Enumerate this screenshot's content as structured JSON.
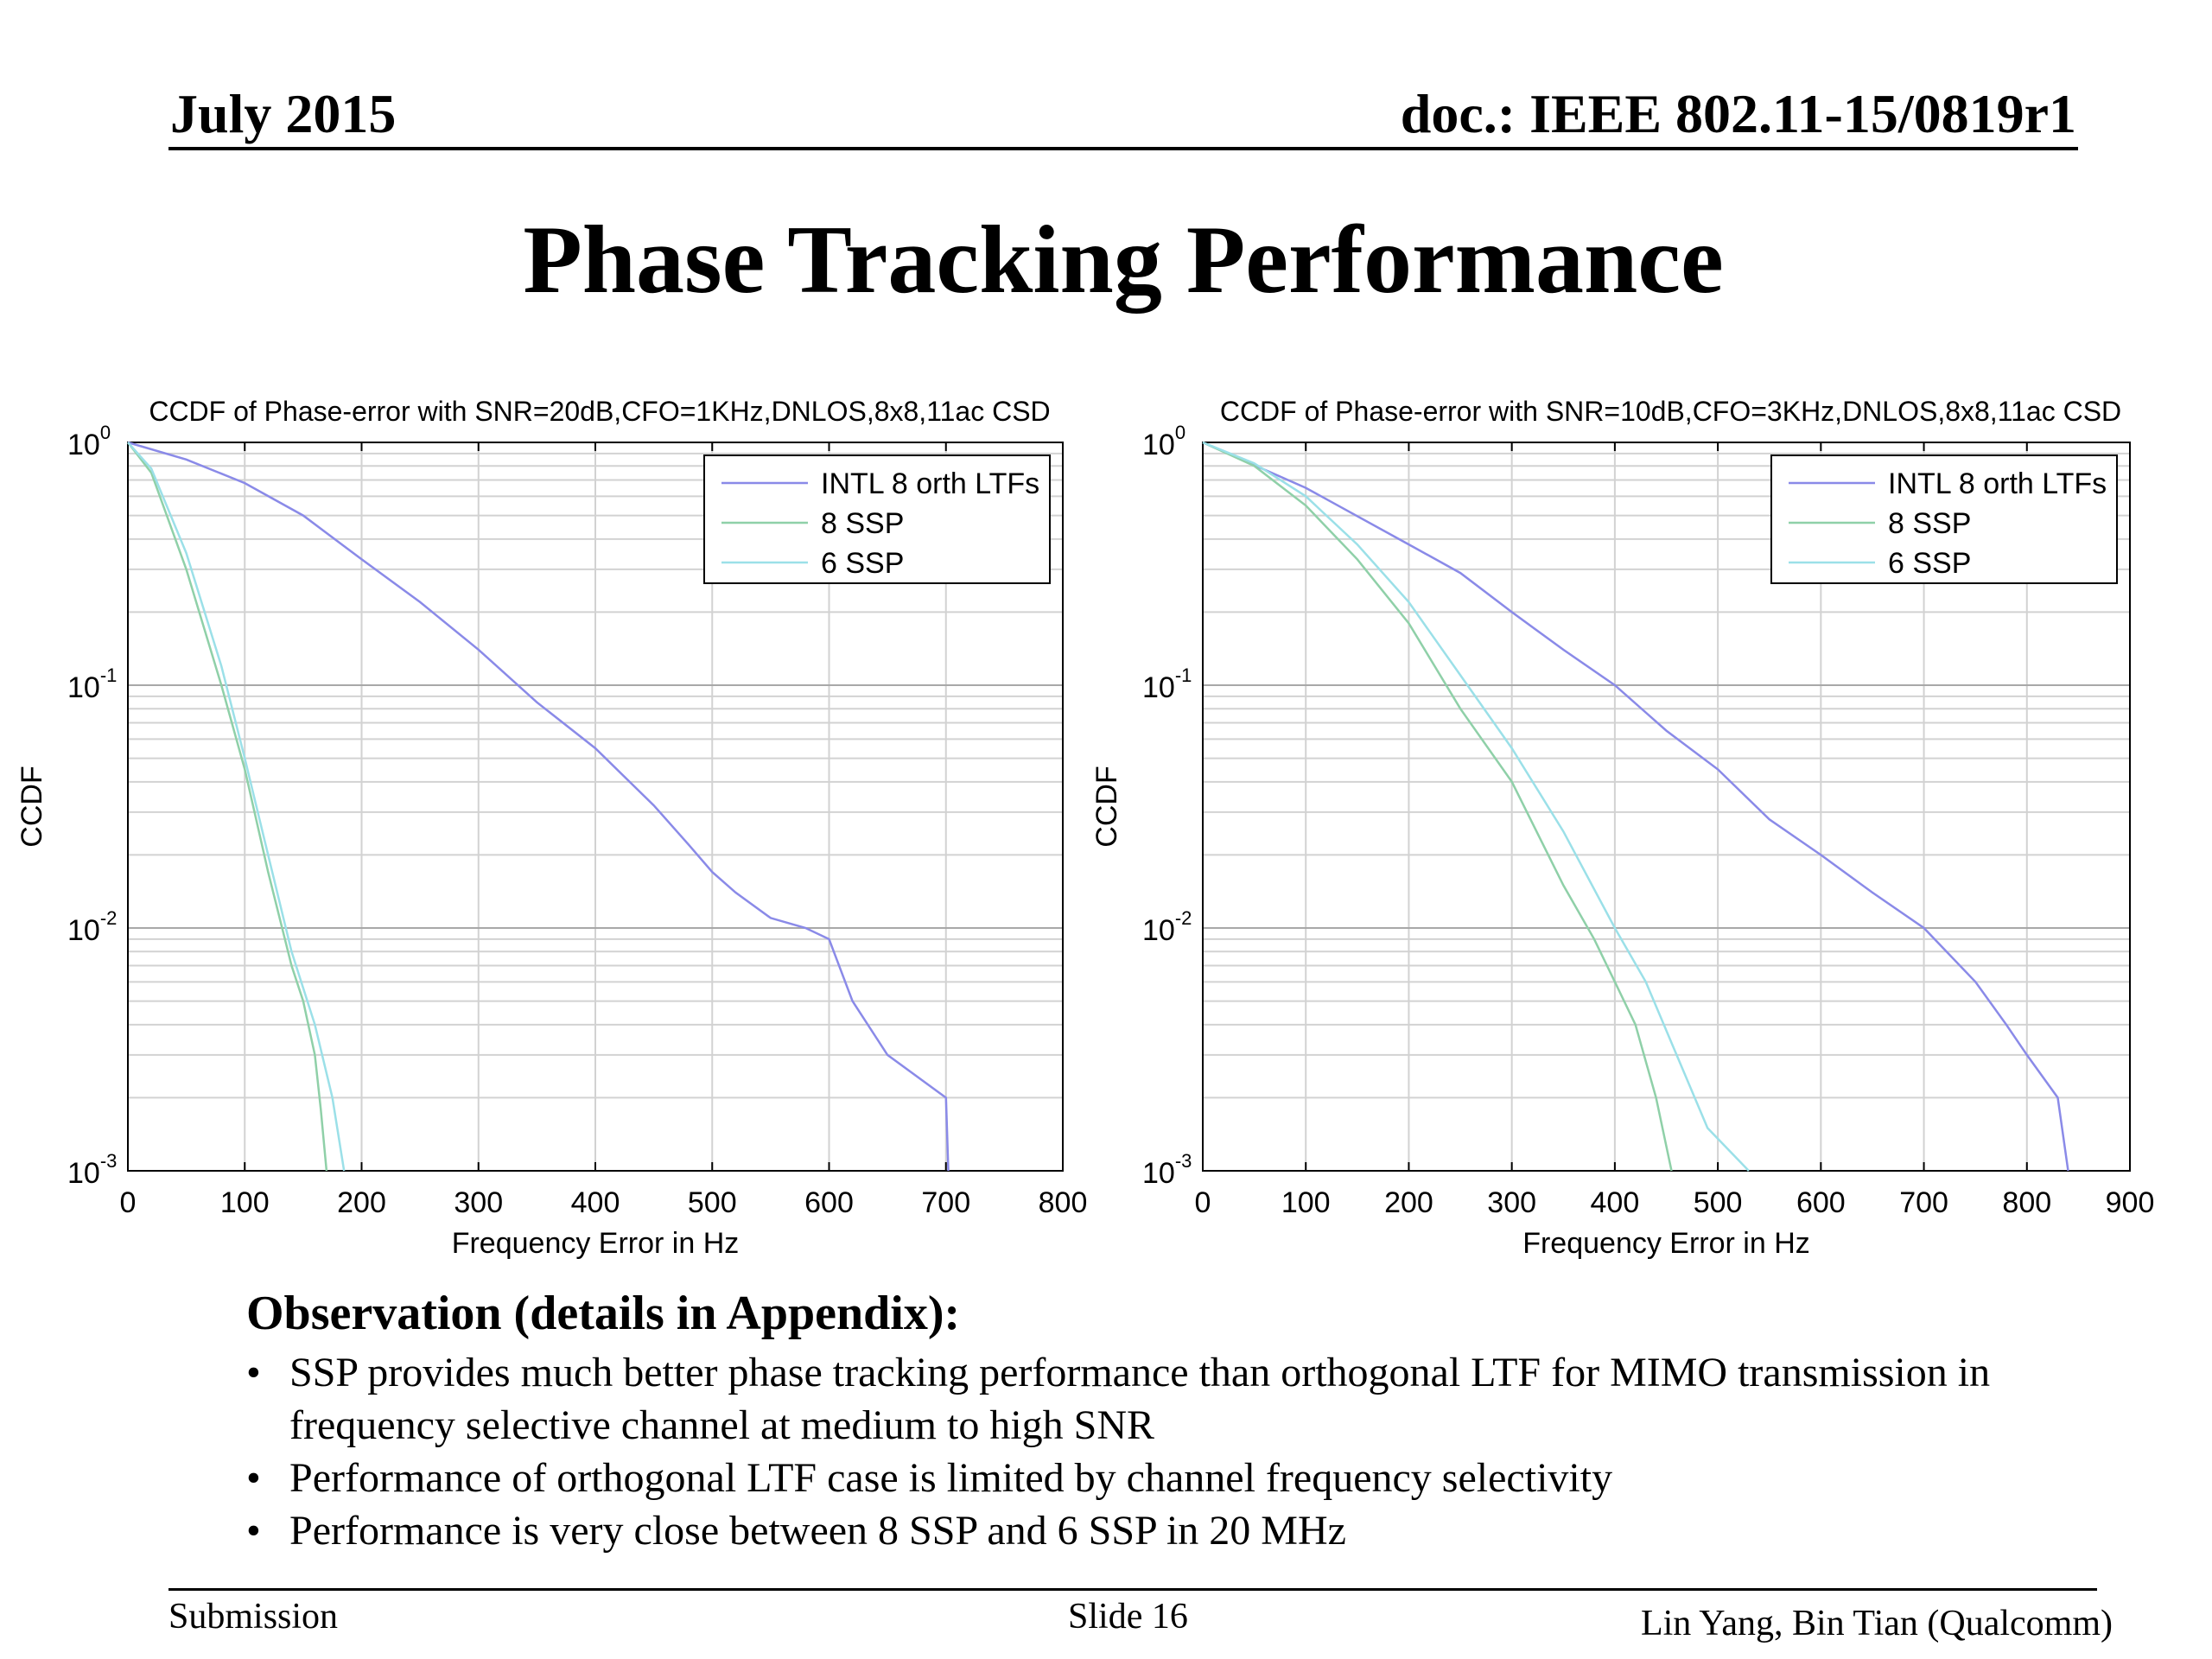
{
  "header": {
    "date": "July 2015",
    "doc": "doc.: IEEE 802.11-15/0819r1"
  },
  "title": "Phase Tracking Performance",
  "observation": {
    "heading": "Observation (details in Appendix):",
    "bullets": [
      "SSP provides much better phase tracking performance than orthogonal LTF for MIMO transmission in frequency selective channel at medium to high SNR",
      "Performance of orthogonal LTF case is limited by channel frequency selectivity",
      "Performance is very close between 8 SSP and 6 SSP in 20 MHz"
    ]
  },
  "footer": {
    "left": "Submission",
    "center": "Slide 16",
    "right": "Lin Yang, Bin Tian (Qualcomm)"
  },
  "colors": {
    "intl": "#8a8ae8",
    "ssp8": "#8fd0a8",
    "ssp6": "#9be0e8"
  },
  "chart_data": [
    {
      "type": "line",
      "title": "CCDF of Phase-error with SNR=20dB,CFO=1KHz,DNLOS,8x8,11ac CSD",
      "xlabel": "Frequency Error in Hz",
      "ylabel": "CCDF",
      "xlim": [
        0,
        800
      ],
      "ylim": [
        0.001,
        1
      ],
      "yscale": "log",
      "grid": true,
      "legend_position": "top-right",
      "xticks": [
        0,
        100,
        200,
        300,
        400,
        500,
        600,
        700,
        800
      ],
      "series": [
        {
          "name": "INTL 8 orth LTFs",
          "color": "#8a8ae8",
          "x": [
            0,
            50,
            100,
            150,
            200,
            250,
            300,
            350,
            400,
            450,
            480,
            500,
            520,
            550,
            580,
            600,
            620,
            650,
            700,
            702
          ],
          "y": [
            1.0,
            0.85,
            0.68,
            0.5,
            0.33,
            0.22,
            0.14,
            0.085,
            0.055,
            0.032,
            0.022,
            0.017,
            0.014,
            0.011,
            0.01,
            0.009,
            0.005,
            0.003,
            0.002,
            0.001
          ]
        },
        {
          "name": "8 SSP",
          "color": "#8fd0a8",
          "x": [
            0,
            20,
            50,
            80,
            100,
            120,
            140,
            150,
            160,
            165,
            170
          ],
          "y": [
            1.0,
            0.75,
            0.3,
            0.1,
            0.045,
            0.017,
            0.007,
            0.005,
            0.003,
            0.0018,
            0.001
          ]
        },
        {
          "name": "6 SSP",
          "color": "#9be0e8",
          "x": [
            0,
            20,
            50,
            80,
            100,
            120,
            140,
            160,
            175,
            185
          ],
          "y": [
            1.0,
            0.78,
            0.35,
            0.12,
            0.05,
            0.02,
            0.008,
            0.004,
            0.002,
            0.001
          ]
        }
      ]
    },
    {
      "type": "line",
      "title": "CCDF of Phase-error with SNR=10dB,CFO=3KHz,DNLOS,8x8,11ac CSD",
      "xlabel": "Frequency Error in Hz",
      "ylabel": "CCDF",
      "xlim": [
        0,
        900
      ],
      "ylim": [
        0.001,
        1
      ],
      "yscale": "log",
      "grid": true,
      "legend_position": "top-right",
      "xticks": [
        0,
        100,
        200,
        300,
        400,
        500,
        600,
        700,
        800,
        900
      ],
      "series": [
        {
          "name": "INTL 8 orth LTFs",
          "color": "#8a8ae8",
          "x": [
            0,
            100,
            200,
            250,
            300,
            350,
            400,
            450,
            500,
            550,
            600,
            650,
            700,
            750,
            780,
            800,
            830,
            840
          ],
          "y": [
            1.0,
            0.65,
            0.38,
            0.29,
            0.2,
            0.14,
            0.1,
            0.065,
            0.045,
            0.028,
            0.02,
            0.014,
            0.01,
            0.006,
            0.004,
            0.003,
            0.002,
            0.001
          ]
        },
        {
          "name": "8 SSP",
          "color": "#8fd0a8",
          "x": [
            0,
            50,
            100,
            150,
            200,
            250,
            300,
            350,
            380,
            400,
            420,
            440,
            455
          ],
          "y": [
            1.0,
            0.8,
            0.55,
            0.33,
            0.18,
            0.08,
            0.04,
            0.015,
            0.009,
            0.006,
            0.004,
            0.002,
            0.001
          ]
        },
        {
          "name": "6 SSP",
          "color": "#9be0e8",
          "x": [
            0,
            50,
            100,
            150,
            200,
            250,
            300,
            350,
            400,
            430,
            460,
            490,
            530
          ],
          "y": [
            1.0,
            0.82,
            0.6,
            0.38,
            0.22,
            0.11,
            0.055,
            0.025,
            0.01,
            0.006,
            0.003,
            0.0015,
            0.001
          ]
        }
      ]
    }
  ]
}
